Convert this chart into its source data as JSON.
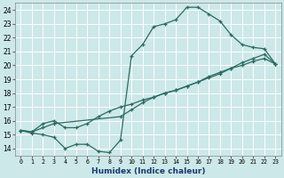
{
  "xlabel": "Humidex (Indice chaleur)",
  "ylabel": "",
  "bg_color": "#cce8e8",
  "grid_color": "#ffffff",
  "line_color": "#2a6b60",
  "xlim": [
    -0.5,
    23.5
  ],
  "ylim": [
    13.5,
    24.5
  ],
  "xticks": [
    0,
    1,
    2,
    3,
    4,
    5,
    6,
    7,
    8,
    9,
    10,
    11,
    12,
    13,
    14,
    15,
    16,
    17,
    18,
    19,
    20,
    21,
    22,
    23
  ],
  "yticks": [
    14,
    15,
    16,
    17,
    18,
    19,
    20,
    21,
    22,
    23,
    24
  ],
  "line1_x": [
    0,
    1,
    2,
    3,
    4,
    5,
    6,
    7,
    8,
    9,
    10,
    11,
    12,
    13,
    14,
    15,
    16,
    17,
    18,
    19,
    20,
    21,
    22,
    23
  ],
  "line1_y": [
    15.3,
    15.1,
    15.0,
    14.8,
    14.0,
    14.3,
    14.3,
    13.8,
    13.7,
    14.6,
    20.7,
    21.5,
    22.8,
    23.0,
    23.3,
    24.2,
    24.2,
    23.7,
    23.2,
    22.2,
    21.5,
    21.3,
    21.2,
    20.1
  ],
  "line2_x": [
    0,
    1,
    2,
    3,
    4,
    5,
    6,
    7,
    8,
    9,
    10,
    11,
    12,
    13,
    14,
    15,
    16,
    17,
    18,
    19,
    20,
    21,
    22,
    23
  ],
  "line2_y": [
    15.3,
    15.2,
    15.8,
    16.0,
    15.5,
    15.5,
    15.8,
    16.3,
    16.7,
    17.0,
    17.2,
    17.5,
    17.7,
    18.0,
    18.2,
    18.5,
    18.8,
    19.2,
    19.5,
    19.8,
    20.0,
    20.3,
    20.5,
    20.1
  ],
  "line3_x": [
    0,
    1,
    2,
    3,
    9,
    10,
    11,
    12,
    13,
    14,
    15,
    16,
    17,
    18,
    19,
    20,
    21,
    22,
    23
  ],
  "line3_y": [
    15.3,
    15.2,
    15.5,
    15.8,
    16.3,
    16.8,
    17.3,
    17.7,
    18.0,
    18.2,
    18.5,
    18.8,
    19.1,
    19.4,
    19.8,
    20.2,
    20.5,
    20.8,
    20.1
  ]
}
